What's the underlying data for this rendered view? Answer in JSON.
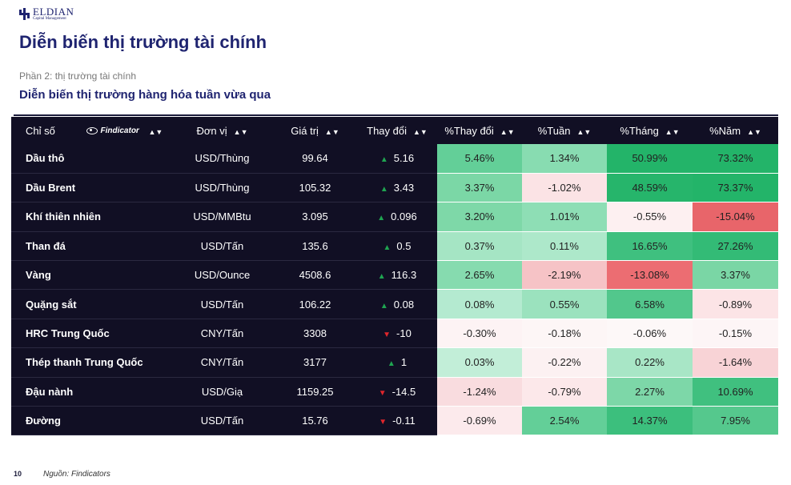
{
  "brand": {
    "name": "ELDIAN",
    "sub": "Capital Management"
  },
  "title": "Diễn biến thị trường tài chính",
  "part": "Phần 2: thị trường tài chính",
  "subtitle": "Diễn biến thị trường hàng hóa tuần vừa qua",
  "table": {
    "headers": {
      "name": "Chỉ số",
      "findicator": "Findicator",
      "unit": "Đơn vị",
      "value": "Giá trị",
      "change": "Thay đổi",
      "pct_change": "%Thay đổi",
      "week": "%Tuần",
      "month": "%Tháng",
      "year": "%Năm"
    },
    "sort_glyph": "▲▼",
    "rows": [
      {
        "name": "Dầu thô",
        "unit": "USD/Thùng",
        "value": "99.64",
        "dir": "up",
        "change": "5.16",
        "pct": "5.46%",
        "week": "1.34%",
        "month": "50.99%",
        "year": "73.32%",
        "colors": [
          "#63cf98",
          "#88dcb1",
          "#23b469",
          "#23b469"
        ]
      },
      {
        "name": "Dầu Brent",
        "unit": "USD/Thùng",
        "value": "105.32",
        "dir": "up",
        "change": "3.43",
        "pct": "3.37%",
        "week": "-1.02%",
        "month": "48.59%",
        "year": "73.37%",
        "colors": [
          "#7bd7a6",
          "#fbe3e5",
          "#26b56b",
          "#23b469"
        ]
      },
      {
        "name": "Khí thiên nhiên",
        "unit": "USD/MMBtu",
        "value": "3.095",
        "dir": "up",
        "change": "0.096",
        "pct": "3.20%",
        "week": "1.01%",
        "month": "-0.55%",
        "year": "-15.04%",
        "colors": [
          "#7ed8a8",
          "#8edeb5",
          "#fdf0f1",
          "#e8656a"
        ]
      },
      {
        "name": "Than đá",
        "unit": "USD/Tấn",
        "value": "135.6",
        "dir": "up",
        "change": "0.5",
        "pct": "0.37%",
        "week": "0.11%",
        "month": "16.65%",
        "year": "27.26%",
        "colors": [
          "#a5e5c4",
          "#ade8ca",
          "#3fc07f",
          "#33bb76"
        ]
      },
      {
        "name": "Vàng",
        "unit": "USD/Ounce",
        "value": "4508.6",
        "dir": "up",
        "change": "116.3",
        "pct": "2.65%",
        "week": "-2.19%",
        "month": "-13.08%",
        "year": "3.37%",
        "colors": [
          "#86dbaf",
          "#f6c3c6",
          "#ec6d72",
          "#7ad6a5"
        ]
      },
      {
        "name": "Quặng sắt",
        "unit": "USD/Tấn",
        "value": "106.22",
        "dir": "up",
        "change": "0.08",
        "pct": "0.08%",
        "week": "0.55%",
        "month": "6.58%",
        "year": "-0.89%",
        "colors": [
          "#b4ead0",
          "#9be2be",
          "#52c78c",
          "#fce4e6"
        ]
      },
      {
        "name": "HRC Trung Quốc",
        "unit": "CNY/Tấn",
        "value": "3308",
        "dir": "down",
        "change": "-10",
        "pct": "-0.30%",
        "week": "-0.18%",
        "month": "-0.06%",
        "year": "-0.15%",
        "colors": [
          "#fdf3f4",
          "#fdf6f6",
          "#fdf8f8",
          "#fdf5f6"
        ]
      },
      {
        "name": "Thép thanh Trung Quốc",
        "unit": "CNY/Tấn",
        "value": "3177",
        "dir": "up",
        "change": "1",
        "pct": "0.03%",
        "week": "-0.22%",
        "month": "0.22%",
        "year": "-1.64%",
        "colors": [
          "#c2eed8",
          "#fcf1f2",
          "#a8e6c6",
          "#f8d3d6"
        ]
      },
      {
        "name": "Đậu nành",
        "unit": "USD/Giạ",
        "value": "1159.25",
        "dir": "down",
        "change": "-14.5",
        "pct": "-1.24%",
        "week": "-0.79%",
        "month": "2.27%",
        "year": "10.69%",
        "colors": [
          "#f9dcdf",
          "#fce8ea",
          "#7dd7a8",
          "#40c07f"
        ]
      },
      {
        "name": "Đường",
        "unit": "USD/Tấn",
        "value": "15.76",
        "dir": "down",
        "change": "-0.11",
        "pct": "-0.69%",
        "week": "2.54%",
        "month": "14.37%",
        "year": "7.95%",
        "colors": [
          "#fceaec",
          "#63cf98",
          "#3cbf7d",
          "#55c88d"
        ]
      }
    ]
  },
  "page_number": "10",
  "source": "Nguồn: Findicators"
}
